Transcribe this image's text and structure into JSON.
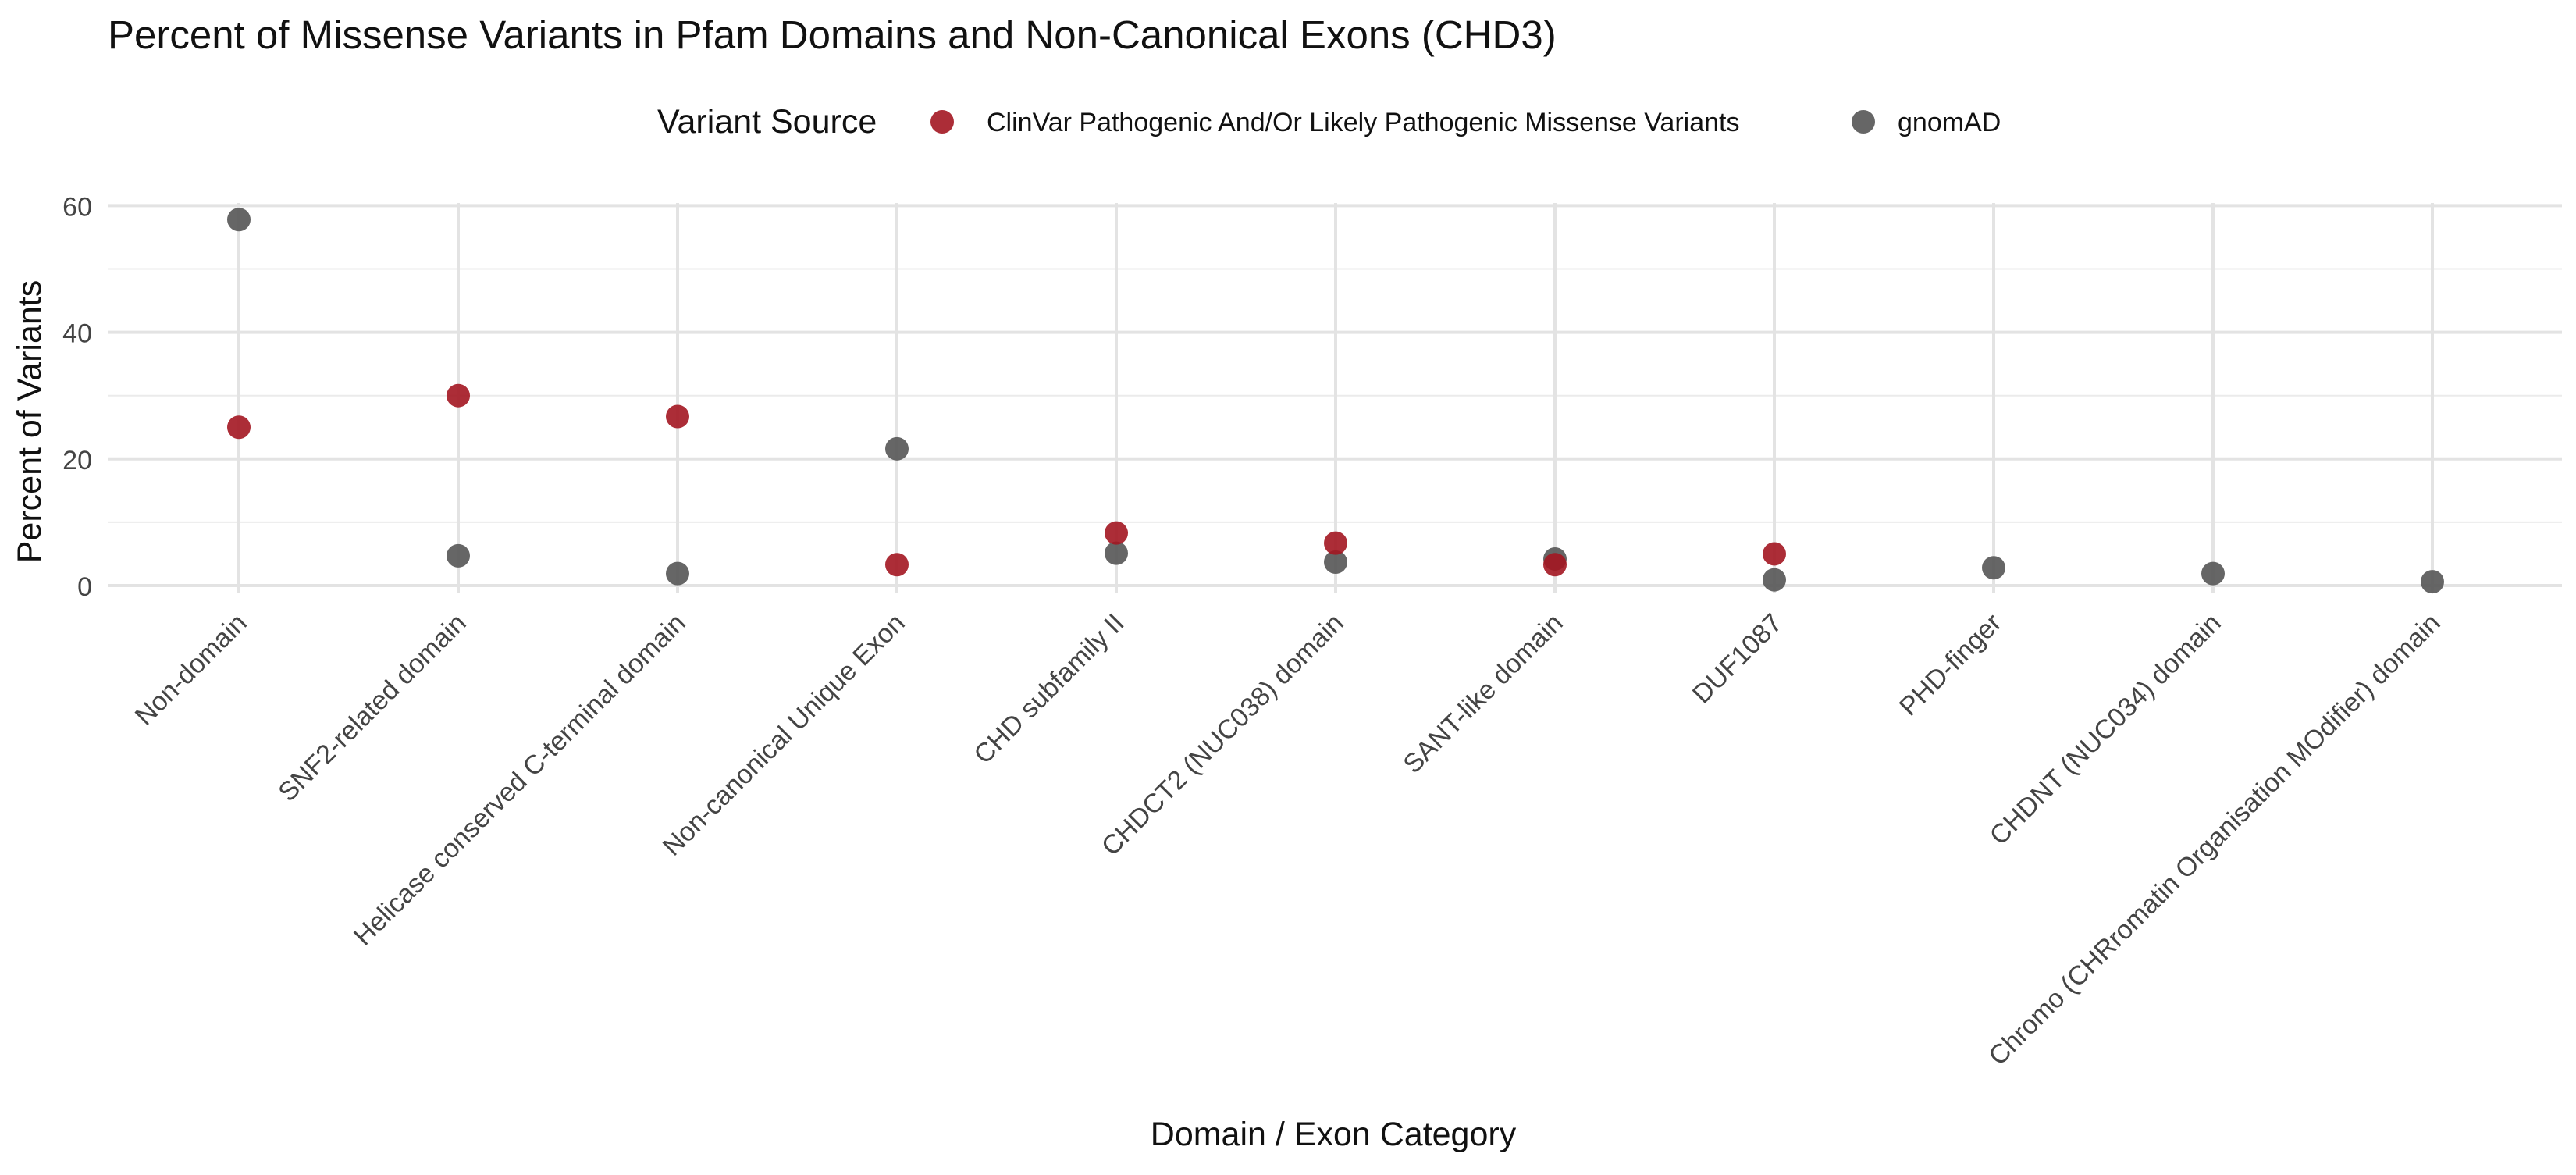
{
  "chart_data": {
    "type": "scatter",
    "title": "Percent of Missense Variants in Pfam Domains and Non-Canonical Exons (CHD3)",
    "xlabel": "Domain / Exon Category",
    "ylabel": "Percent of Variants",
    "ylim": [
      0,
      60
    ],
    "yticks": [
      0,
      20,
      40,
      60
    ],
    "grid": true,
    "legend_position": "top",
    "legend_title": "Variant Source",
    "categories": [
      "Non-domain",
      "SNF2-related domain",
      "Helicase conserved C-terminal domain",
      "Non-canonical Unique Exon",
      "CHD subfamily II",
      "CHDCT2 (NUC038) domain",
      "SANT-like domain",
      "DUF1087",
      "PHD-finger",
      "CHDNT (NUC034) domain",
      "Chromo (CHRromatin Organisation MOdifier) domain"
    ],
    "series": [
      {
        "name": "ClinVar Pathogenic And/Or Likely Pathogenic Missense Variants",
        "color": "#a31621",
        "values": [
          25.0,
          30.0,
          26.7,
          3.3,
          8.3,
          6.7,
          3.3,
          5.0,
          null,
          null,
          null
        ]
      },
      {
        "name": "gnomAD",
        "color": "#555555",
        "values": [
          57.8,
          4.7,
          1.9,
          21.6,
          5.1,
          3.7,
          4.2,
          0.9,
          2.8,
          1.9,
          0.6
        ]
      }
    ]
  }
}
